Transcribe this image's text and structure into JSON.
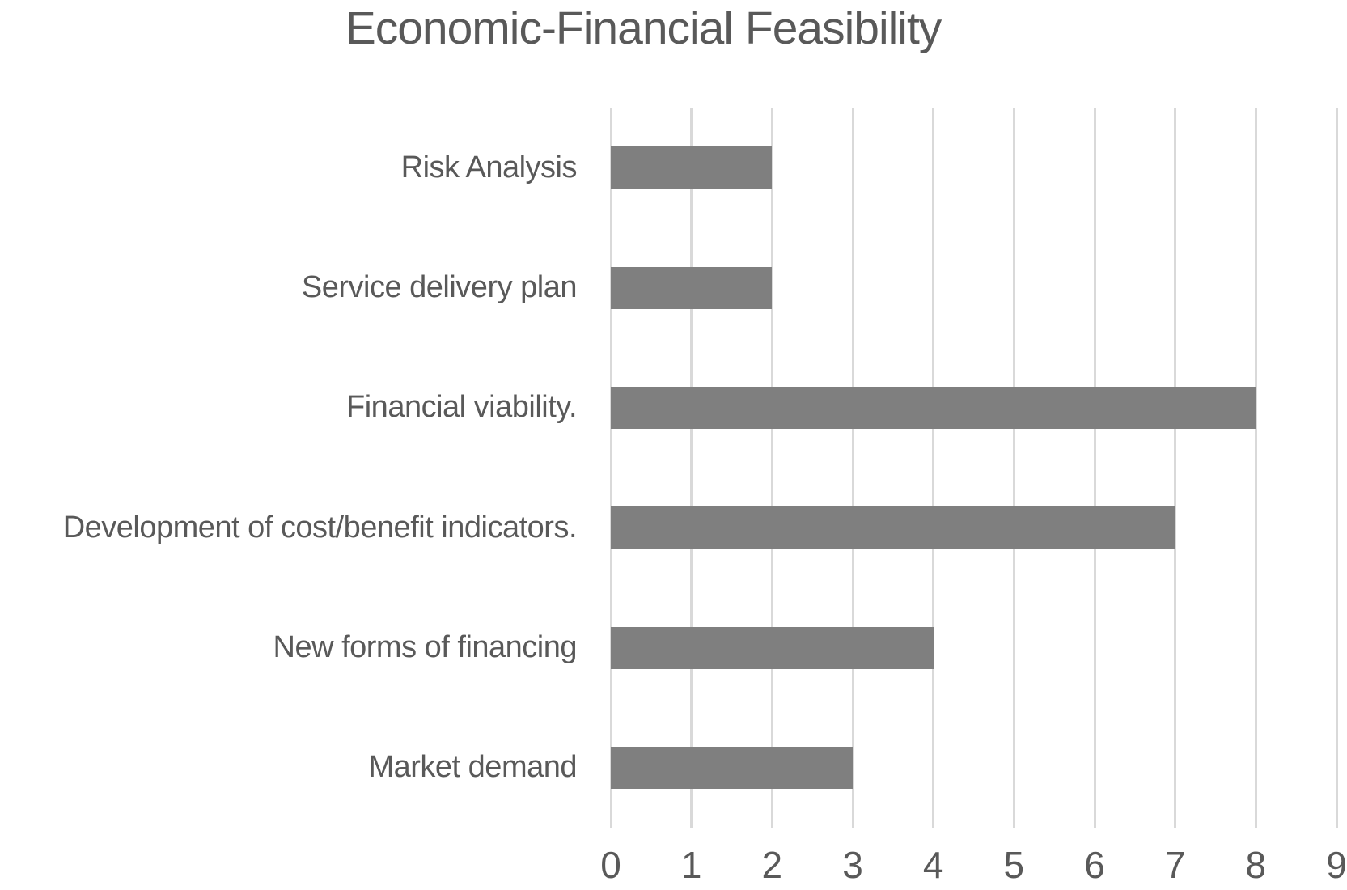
{
  "chart_data": {
    "type": "bar",
    "orientation": "horizontal",
    "title": "Economic-Financial Feasibility",
    "categories": [
      "Risk Analysis",
      "Service delivery plan",
      "Financial viability.",
      "Development of cost/benefit indicators.",
      "New forms of financing",
      "Market demand"
    ],
    "values": [
      2,
      2,
      8,
      7,
      4,
      3
    ],
    "xlabel": "",
    "ylabel": "",
    "xlim": [
      0,
      9
    ],
    "xticks": [
      0,
      1,
      2,
      3,
      4,
      5,
      6,
      7,
      8,
      9
    ],
    "grid": "vertical-gridlines-on",
    "legend": "none",
    "data_labels": "none",
    "colors": {
      "bar": "#7F7F7F",
      "gridline": "#D9D9D9",
      "text": "#595959",
      "background": "#FFFFFF"
    }
  }
}
